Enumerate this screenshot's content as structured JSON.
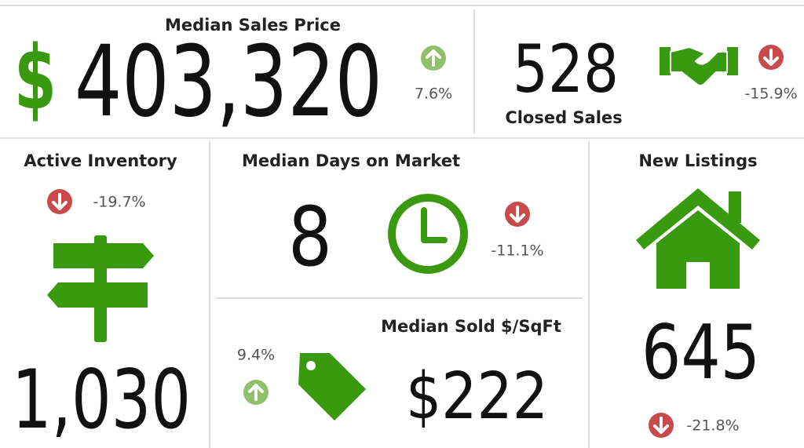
{
  "currency_symbol": "$",
  "tiles": [
    {
      "label": "Median Sales Price",
      "value": "403,320",
      "change": "7.6%",
      "trend": "up"
    },
    {
      "label": "Closed Sales",
      "value": "528",
      "change": "-15.9%",
      "trend": "down"
    },
    {
      "label": "Active Inventory",
      "value": "1,030",
      "change": "-19.7%",
      "trend": "down"
    },
    {
      "label": "Median Days on Market",
      "value": "8",
      "change": "-11.1%",
      "trend": "down"
    },
    {
      "label": "Median Sold $/SqFt",
      "value": "$222",
      "change": "9.4%",
      "trend": "up"
    },
    {
      "label": "New Listings",
      "value": "645",
      "change": "-21.8%",
      "trend": "down"
    }
  ]
}
